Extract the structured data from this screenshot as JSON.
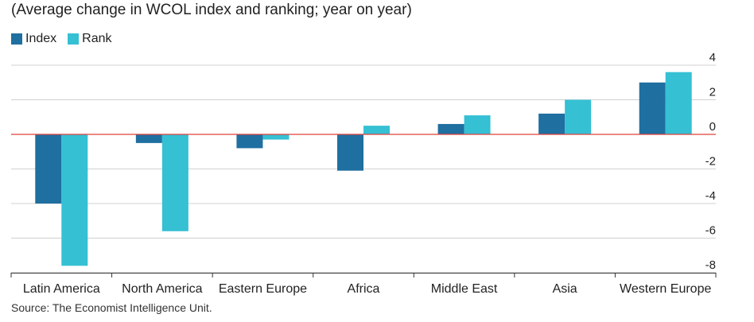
{
  "subtitle": "(Average change in WCOL index and ranking; year on year)",
  "source": "Source: The Economist Intelligence Unit.",
  "chart_data": {
    "type": "bar",
    "categories": [
      "Latin America",
      "North America",
      "Eastern Europe",
      "Africa",
      "Middle East",
      "Asia",
      "Western Europe"
    ],
    "series": [
      {
        "name": "Index",
        "color": "#1f6fa0",
        "values": [
          -4.0,
          -0.5,
          -0.8,
          -2.1,
          0.6,
          1.2,
          3.0
        ]
      },
      {
        "name": "Rank",
        "color": "#35c0d4",
        "values": [
          -7.6,
          -5.6,
          -0.3,
          0.5,
          1.1,
          2.0,
          3.6
        ]
      }
    ],
    "ylim": [
      -8,
      4
    ],
    "yticks": [
      "4",
      "2",
      "0",
      "-2",
      "-4",
      "-6",
      "-8"
    ],
    "ytick_values": [
      4,
      2,
      0,
      -2,
      -4,
      -6,
      -8
    ],
    "grid": true,
    "zero_line_color": "#e0403a",
    "legend_position": "top-left"
  }
}
